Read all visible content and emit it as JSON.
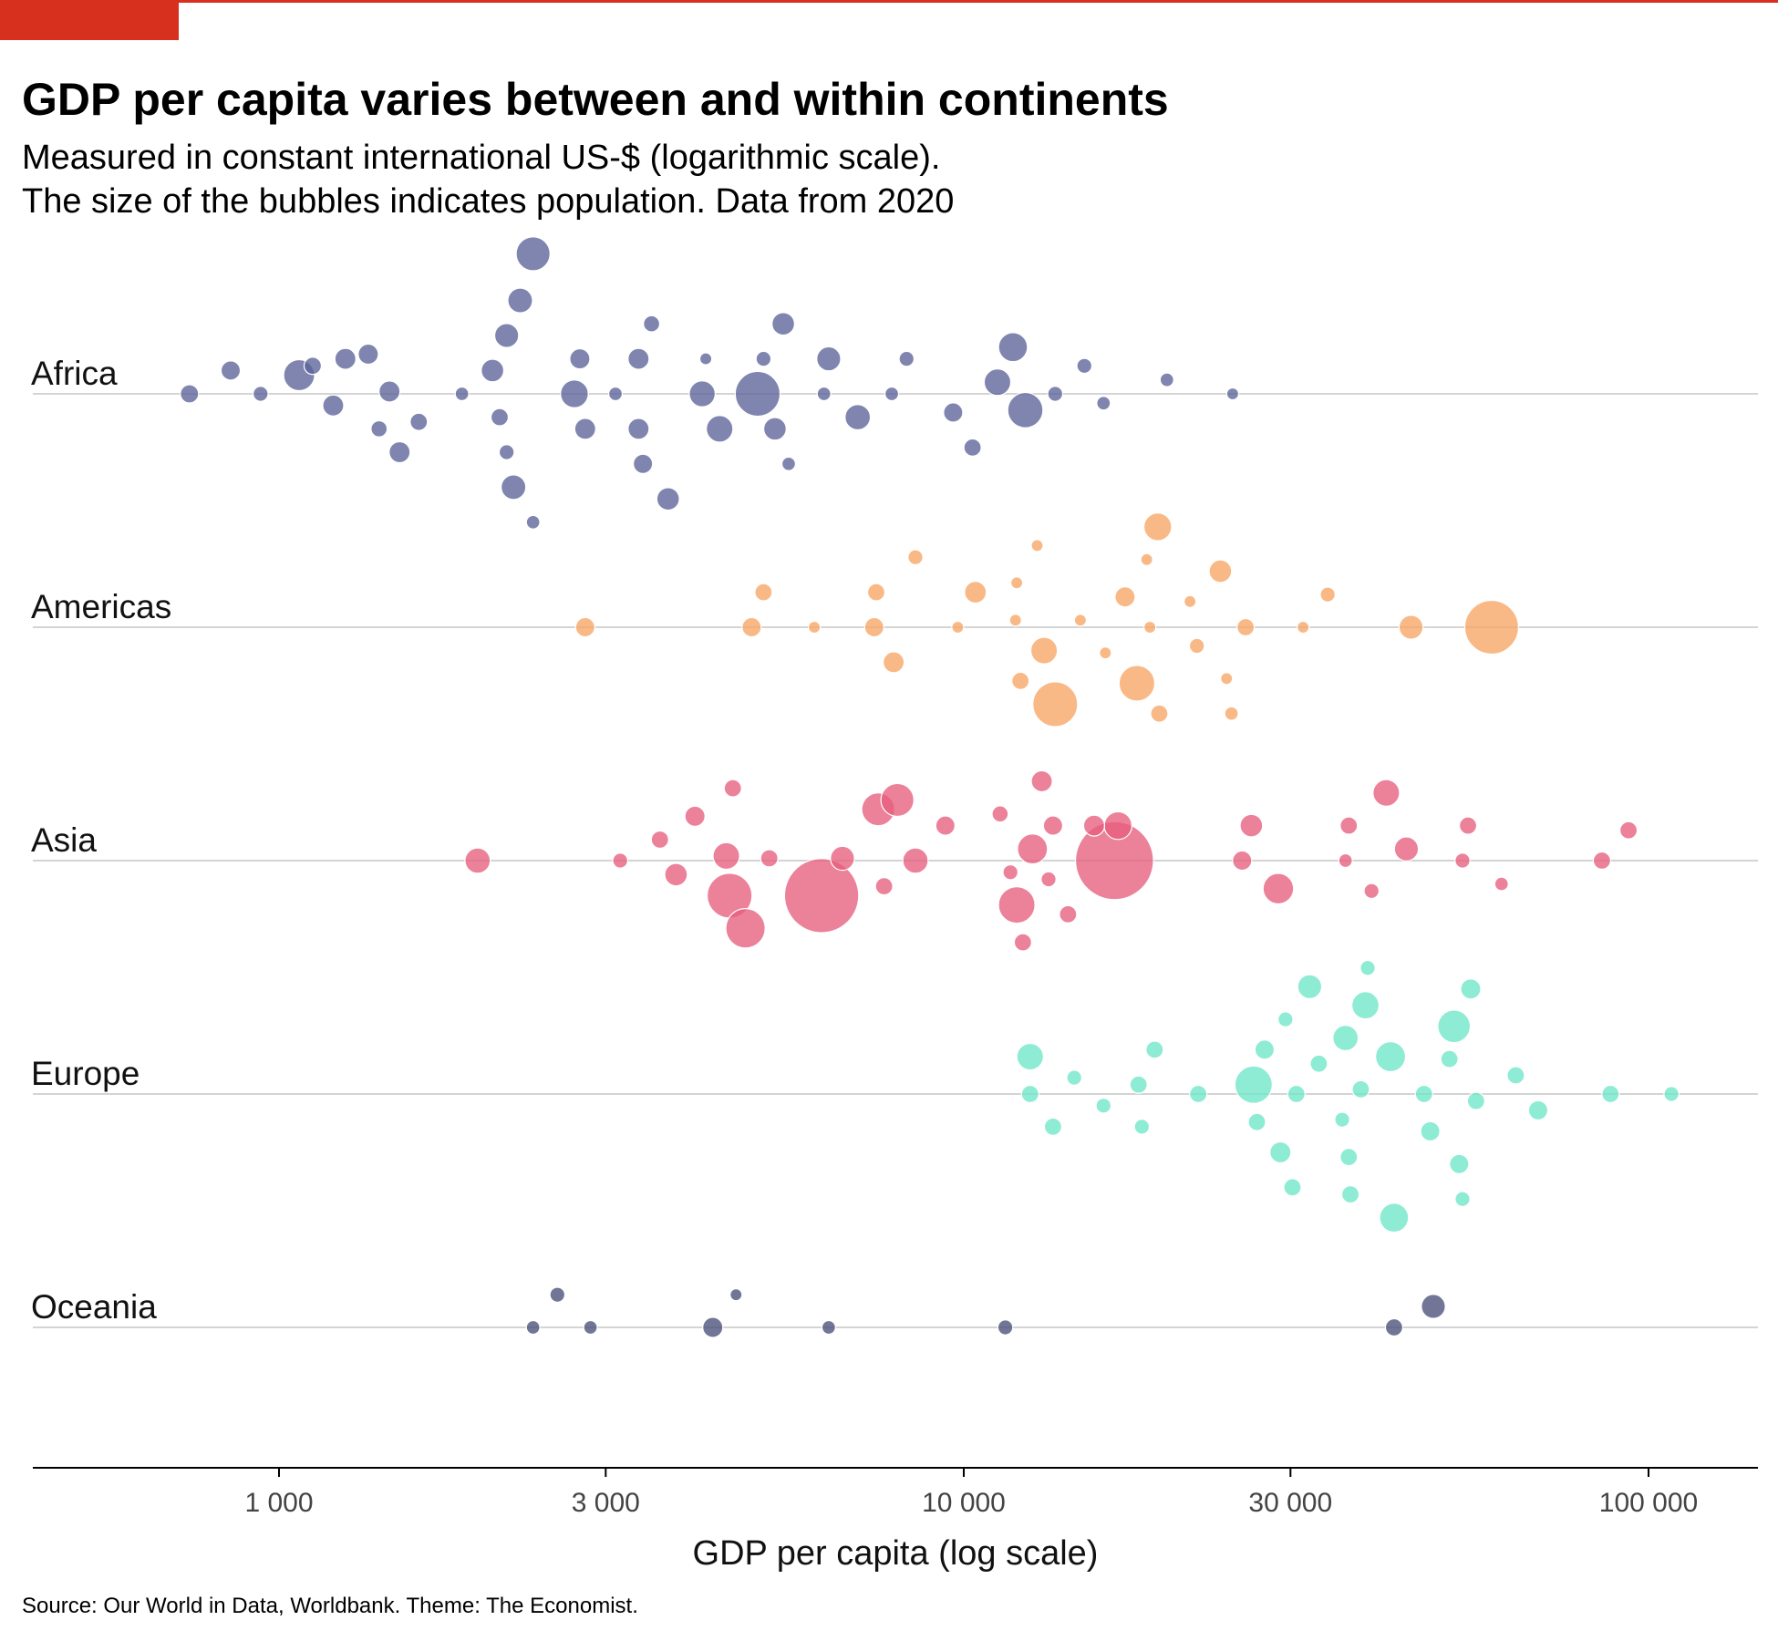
{
  "title": "GDP per capita varies between and within continents",
  "subtitle_line1": "Measured in constant international US-$ (logarithmic scale).",
  "subtitle_line2": "The size of the bubbles indicates population. Data from 2020",
  "source": "Source: Our World in Data, Worldbank. Theme: The Economist.",
  "colors": {
    "accent": "#d7301f",
    "gridline": "#d4d4d4",
    "axis": "#000000",
    "Africa": "#5b6399",
    "Americas": "#f7a564",
    "Asia": "#e75d7d",
    "Europe": "#6ee6c8",
    "Oceania": "#4a5078"
  },
  "chart_data": {
    "type": "scatter",
    "xlabel": "GDP per capita (log scale)",
    "ylabel": "",
    "x_scale": "log",
    "xlim": [
      560,
      130000
    ],
    "x_ticks": [
      1000,
      3000,
      10000,
      30000,
      100000
    ],
    "x_tick_labels": [
      "1 000",
      "3 000",
      "10 000",
      "30 000",
      "100 000"
    ],
    "categories": [
      "Africa",
      "Americas",
      "Asia",
      "Europe",
      "Oceania"
    ],
    "grid": "horizontal line per continent",
    "series": [
      {
        "name": "Africa",
        "points": [
          [
            2350,
            0.6,
            3.2
          ],
          [
            2250,
            0.4,
            1.5
          ],
          [
            2150,
            0.25,
            1.4
          ],
          [
            2050,
            0.1,
            1.2
          ],
          [
            1120,
            0.12,
            0.6
          ],
          [
            1350,
            0.17,
            0.9
          ],
          [
            1250,
            0.15,
            1.0
          ],
          [
            850,
            0.1,
            0.8
          ],
          [
            740,
            0,
            0.7
          ],
          [
            940,
            0,
            0.4
          ],
          [
            1070,
            0.08,
            2.6
          ],
          [
            1200,
            -0.05,
            1.0
          ],
          [
            1450,
            0.01,
            1.0
          ],
          [
            1600,
            -0.12,
            0.6
          ],
          [
            1500,
            -0.25,
            1.0
          ],
          [
            1400,
            -0.15,
            0.5
          ],
          [
            1850,
            0,
            0.3
          ],
          [
            2100,
            -0.1,
            0.6
          ],
          [
            2150,
            -0.25,
            0.4
          ],
          [
            2200,
            -0.4,
            1.5
          ],
          [
            2350,
            -0.55,
            0.3
          ],
          [
            2700,
            0,
            2.0
          ],
          [
            2800,
            -0.15,
            1.0
          ],
          [
            2750,
            0.15,
            0.9
          ],
          [
            3100,
            0,
            0.3
          ],
          [
            3350,
            0.15,
            1.0
          ],
          [
            3500,
            0.3,
            0.5
          ],
          [
            3350,
            -0.15,
            1.0
          ],
          [
            3400,
            -0.3,
            0.8
          ],
          [
            3700,
            -0.45,
            1.2
          ],
          [
            4200,
            0.15,
            0.2
          ],
          [
            4150,
            0,
            1.7
          ],
          [
            4400,
            -0.15,
            1.8
          ],
          [
            5100,
            0.15,
            0.4
          ],
          [
            5450,
            0.3,
            1.2
          ],
          [
            5000,
            0,
            6.0
          ],
          [
            5300,
            -0.15,
            1.2
          ],
          [
            5550,
            -0.3,
            0.3
          ],
          [
            6350,
            0.15,
            1.4
          ],
          [
            6250,
            0,
            0.3
          ],
          [
            7000,
            -0.1,
            1.6
          ],
          [
            7850,
            0,
            0.3
          ],
          [
            8250,
            0.15,
            0.4
          ],
          [
            9650,
            -0.08,
            0.8
          ],
          [
            10300,
            -0.23,
            0.6
          ],
          [
            11200,
            0.05,
            1.8
          ],
          [
            11800,
            0.2,
            2.2
          ],
          [
            12300,
            -0.07,
            3.5
          ],
          [
            13600,
            0,
            0.4
          ],
          [
            15000,
            0.12,
            0.4
          ],
          [
            16000,
            -0.04,
            0.3
          ],
          [
            19800,
            0.06,
            0.3
          ],
          [
            24700,
            0,
            0.2
          ]
        ]
      },
      {
        "name": "Americas",
        "points": [
          [
            2800,
            0,
            0.8
          ],
          [
            4900,
            0,
            0.8
          ],
          [
            5100,
            0.15,
            0.6
          ],
          [
            6050,
            0,
            0.2
          ],
          [
            7450,
            0.15,
            0.6
          ],
          [
            7400,
            0,
            0.8
          ],
          [
            7900,
            -0.15,
            1.0
          ],
          [
            8500,
            0.3,
            0.4
          ],
          [
            9800,
            0,
            0.2
          ],
          [
            10400,
            0.15,
            1.1
          ],
          [
            11900,
            0.03,
            0.2
          ],
          [
            11950,
            0.19,
            0.2
          ],
          [
            12100,
            -0.23,
            0.6
          ],
          [
            12800,
            0.35,
            0.2
          ],
          [
            13100,
            -0.1,
            1.8
          ],
          [
            13600,
            -0.33,
            6.0
          ],
          [
            14800,
            0.03,
            0.2
          ],
          [
            16100,
            -0.11,
            0.2
          ],
          [
            17200,
            0.13,
            0.9
          ],
          [
            18500,
            0.29,
            0.2
          ],
          [
            18700,
            0,
            0.2
          ],
          [
            17900,
            -0.24,
            3.6
          ],
          [
            19200,
            0.43,
            2.0
          ],
          [
            19300,
            -0.37,
            0.6
          ],
          [
            21400,
            0.11,
            0.2
          ],
          [
            21900,
            -0.08,
            0.4
          ],
          [
            23700,
            0.24,
            1.2
          ],
          [
            24200,
            -0.22,
            0.2
          ],
          [
            24600,
            -0.37,
            0.3
          ],
          [
            25800,
            0,
            0.6
          ],
          [
            31300,
            0,
            0.2
          ],
          [
            34000,
            0.14,
            0.4
          ],
          [
            45000,
            0,
            1.4
          ],
          [
            59000,
            0,
            9.0
          ]
        ]
      },
      {
        "name": "Asia",
        "points": [
          [
            1950,
            0,
            1.6
          ],
          [
            3150,
            0,
            0.4
          ],
          [
            3600,
            0.09,
            0.6
          ],
          [
            3800,
            -0.06,
            1.2
          ],
          [
            4050,
            0.19,
            0.9
          ],
          [
            4600,
            0.31,
            0.6
          ],
          [
            4500,
            0.02,
            1.8
          ],
          [
            4550,
            -0.15,
            6.0
          ],
          [
            4800,
            -0.29,
            4.5
          ],
          [
            5200,
            0.01,
            0.6
          ],
          [
            6200,
            -0.15,
            18.0
          ],
          [
            6650,
            0.01,
            1.4
          ],
          [
            7500,
            0.22,
            3.0
          ],
          [
            7650,
            -0.11,
            0.6
          ],
          [
            8000,
            0.26,
            3.0
          ],
          [
            8500,
            0,
            1.6
          ],
          [
            9400,
            0.15,
            0.8
          ],
          [
            11300,
            0.2,
            0.5
          ],
          [
            11700,
            -0.05,
            0.4
          ],
          [
            11950,
            -0.19,
            3.8
          ],
          [
            12200,
            -0.35,
            0.6
          ],
          [
            12600,
            0.05,
            2.4
          ],
          [
            13000,
            0.34,
            1.0
          ],
          [
            13300,
            -0.08,
            0.4
          ],
          [
            13500,
            0.15,
            0.8
          ],
          [
            14200,
            -0.23,
            0.6
          ],
          [
            15500,
            0.15,
            1.0
          ],
          [
            16600,
            0,
            20.0
          ],
          [
            16800,
            0.15,
            2.0
          ],
          [
            25500,
            0,
            0.8
          ],
          [
            26300,
            0.15,
            1.2
          ],
          [
            28800,
            -0.12,
            2.5
          ],
          [
            36100,
            0,
            0.3
          ],
          [
            36500,
            0.15,
            0.6
          ],
          [
            39400,
            -0.13,
            0.4
          ],
          [
            41400,
            0.29,
            1.8
          ],
          [
            44300,
            0.05,
            1.4
          ],
          [
            53500,
            0,
            0.4
          ],
          [
            54500,
            0.15,
            0.6
          ],
          [
            61000,
            -0.1,
            0.3
          ],
          [
            85500,
            0,
            0.6
          ],
          [
            93500,
            0.13,
            0.6
          ]
        ]
      },
      {
        "name": "Europe",
        "points": [
          [
            12500,
            0.16,
            1.8
          ],
          [
            12500,
            0,
            0.6
          ],
          [
            13500,
            -0.14,
            0.6
          ],
          [
            14500,
            0.07,
            0.4
          ],
          [
            16000,
            -0.05,
            0.4
          ],
          [
            18000,
            0.04,
            0.6
          ],
          [
            19000,
            0.19,
            0.6
          ],
          [
            18200,
            -0.14,
            0.4
          ],
          [
            22000,
            0,
            0.6
          ],
          [
            26500,
            0.04,
            4.0
          ],
          [
            26800,
            -0.12,
            0.6
          ],
          [
            27500,
            0.19,
            0.8
          ],
          [
            29000,
            -0.25,
            1.0
          ],
          [
            29500,
            0.32,
            0.4
          ],
          [
            30200,
            -0.4,
            0.6
          ],
          [
            30600,
            0,
            0.6
          ],
          [
            32000,
            0.46,
            1.4
          ],
          [
            33000,
            0.13,
            0.6
          ],
          [
            35700,
            -0.11,
            0.4
          ],
          [
            36100,
            0.24,
            1.6
          ],
          [
            36500,
            -0.27,
            0.6
          ],
          [
            36700,
            -0.43,
            0.6
          ],
          [
            38000,
            0.02,
            0.6
          ],
          [
            38600,
            0.38,
            1.9
          ],
          [
            38900,
            0.54,
            0.4
          ],
          [
            42000,
            0.16,
            2.4
          ],
          [
            42500,
            -0.53,
            2.2
          ],
          [
            47000,
            0,
            0.6
          ],
          [
            48000,
            -0.16,
            0.8
          ],
          [
            51200,
            0.15,
            0.6
          ],
          [
            52000,
            0.29,
            2.9
          ],
          [
            52900,
            -0.3,
            0.8
          ],
          [
            53500,
            -0.45,
            0.4
          ],
          [
            55000,
            0.45,
            0.9
          ],
          [
            56000,
            -0.03,
            0.6
          ],
          [
            64000,
            0.08,
            0.6
          ],
          [
            69000,
            -0.07,
            0.8
          ],
          [
            88000,
            0,
            0.6
          ],
          [
            108000,
            0,
            0.4
          ]
        ]
      },
      {
        "name": "Oceania",
        "points": [
          [
            2350,
            0,
            0.3
          ],
          [
            2550,
            0.14,
            0.4
          ],
          [
            2850,
            0,
            0.3
          ],
          [
            4300,
            0,
            0.9
          ],
          [
            4650,
            0.14,
            0.2
          ],
          [
            6350,
            0,
            0.3
          ],
          [
            11500,
            0,
            0.4
          ],
          [
            42500,
            0,
            0.6
          ],
          [
            48500,
            0.09,
            1.4
          ]
        ]
      }
    ]
  }
}
